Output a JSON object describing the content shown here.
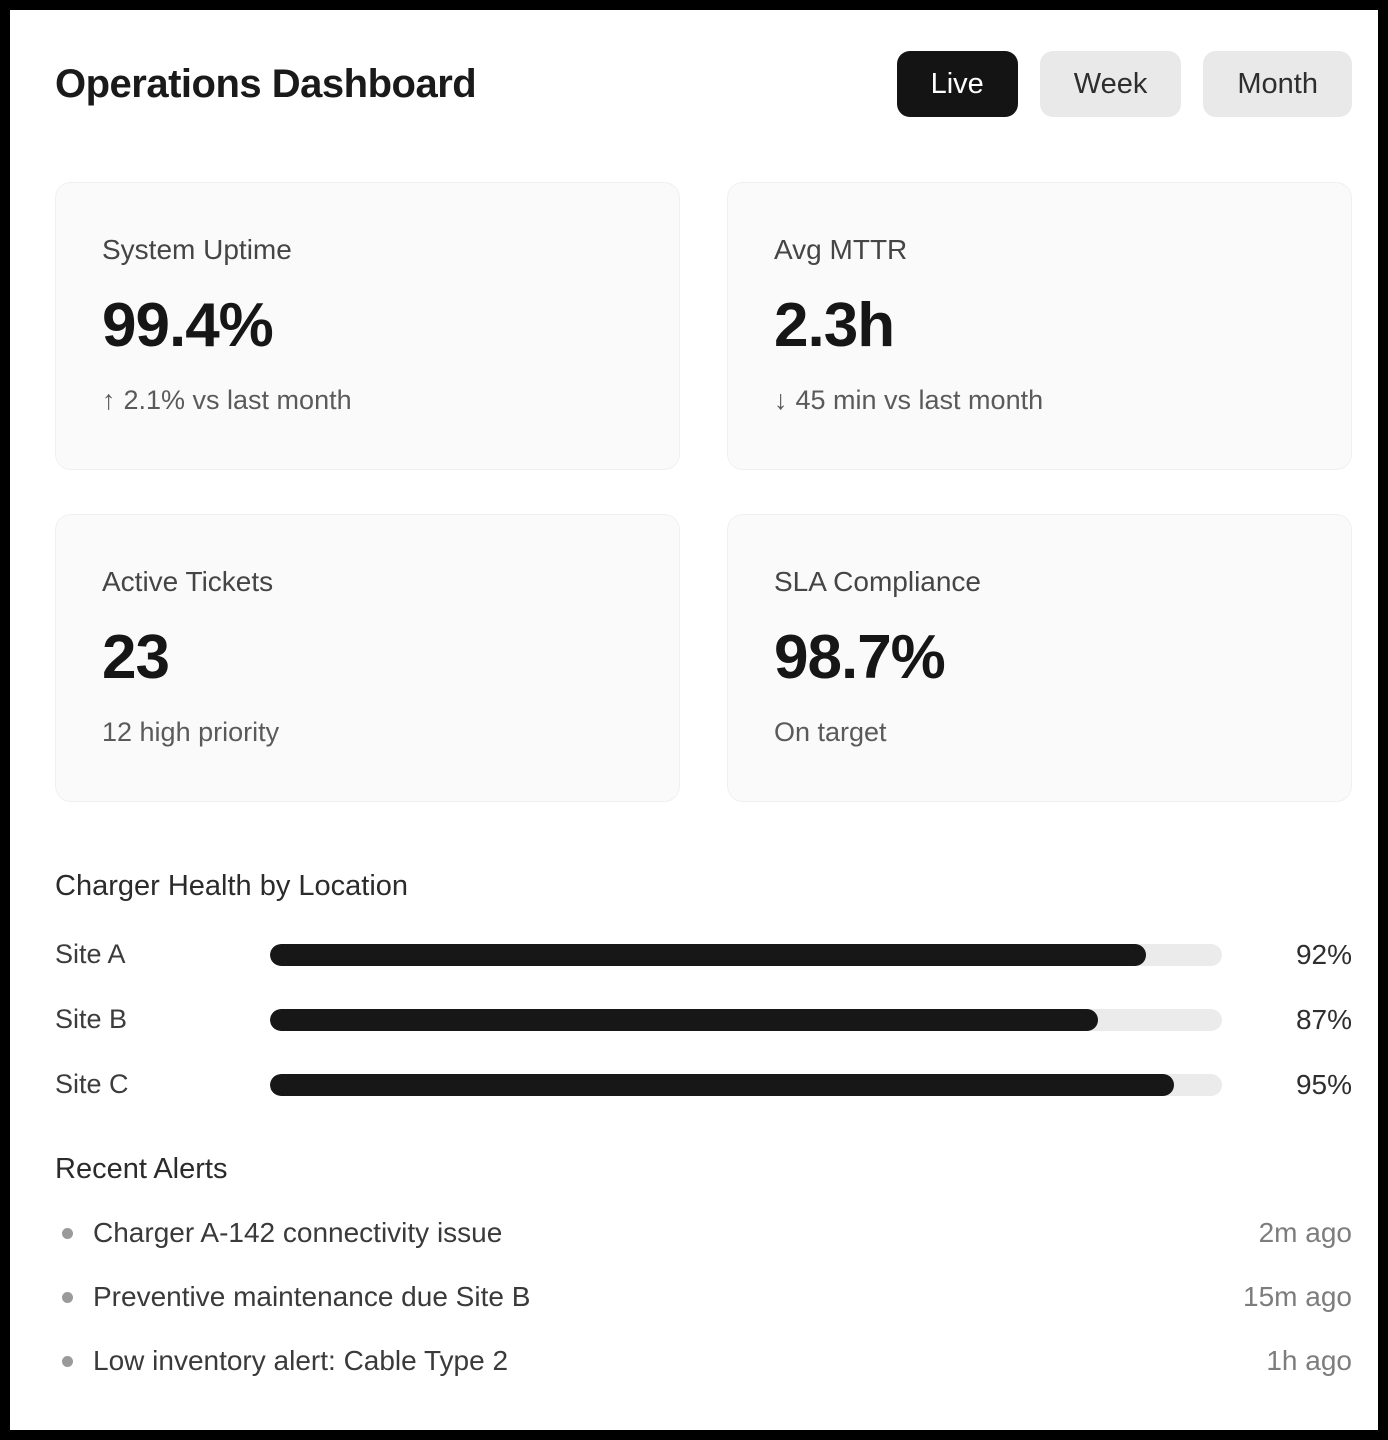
{
  "header": {
    "title": "Operations Dashboard",
    "toggles": [
      {
        "label": "Live",
        "active": true
      },
      {
        "label": "Week",
        "active": false
      },
      {
        "label": "Month",
        "active": false
      }
    ]
  },
  "stats": [
    {
      "label": "System Uptime",
      "value": "99.4%",
      "trend_icon": "↑",
      "trend_text": "2.1% vs last month"
    },
    {
      "label": "Avg MTTR",
      "value": "2.3h",
      "trend_icon": "↓",
      "trend_text": "45 min vs last month"
    },
    {
      "label": "Active Tickets",
      "value": "23",
      "trend_text": "12 high priority"
    },
    {
      "label": "SLA Compliance",
      "value": "98.7%",
      "trend_text": "On target"
    }
  ],
  "charger_health": {
    "title": "Charger Health by Location",
    "sites": [
      {
        "label": "Site A",
        "value": 92,
        "display": "92%"
      },
      {
        "label": "Site B",
        "value": 87,
        "display": "87%"
      },
      {
        "label": "Site C",
        "value": 95,
        "display": "95%"
      }
    ]
  },
  "recent_alerts": {
    "title": "Recent Alerts",
    "items": [
      {
        "text": "Charger A-142 connectivity issue",
        "time": "2m ago"
      },
      {
        "text": "Preventive maintenance due Site B",
        "time": "15m ago"
      },
      {
        "text": "Low inventory alert: Cable Type 2",
        "time": "1h ago"
      }
    ]
  },
  "colors": {
    "frame": "#000000",
    "background": "#ffffff",
    "active_toggle_bg": "#141414",
    "active_toggle_text": "#ffffff",
    "inactive_toggle_bg": "#e9e9e9",
    "card_bg": "#fafafa",
    "bar_fill": "#171717",
    "bar_track": "#ebebeb"
  }
}
